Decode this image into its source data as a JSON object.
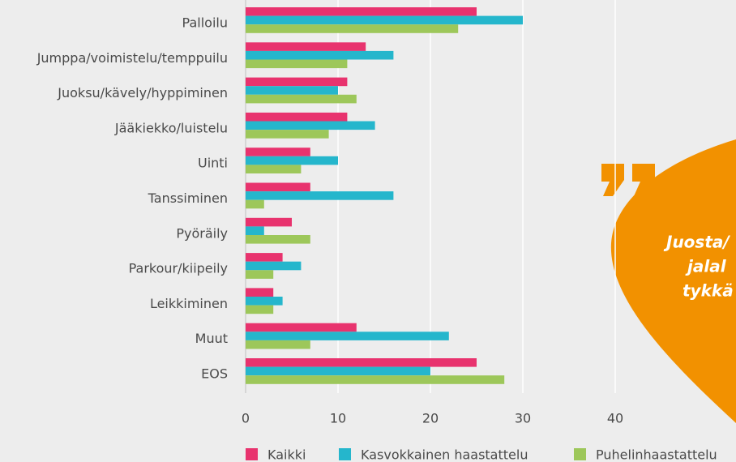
{
  "chart_data": {
    "type": "hbar",
    "categories": [
      "Palloilu",
      "Jumppa/voimistelu/temppuilu",
      "Juoksu/kävely/hyppiminen",
      "Jääkiekko/luistelu",
      "Uinti",
      "Tanssiminen",
      "Pyöräily",
      "Parkour/kiipeily",
      "Leikkiminen",
      "Muut",
      "EOS"
    ],
    "series": [
      {
        "name": "Kaikki",
        "color": "#e8336e",
        "values": [
          25,
          13,
          11,
          11,
          7,
          7,
          5,
          4,
          3,
          12,
          25
        ]
      },
      {
        "name": "Kasvokkainen haastattelu",
        "color": "#25b6cc",
        "values": [
          30,
          16,
          10,
          14,
          10,
          16,
          2,
          6,
          4,
          22,
          20
        ]
      },
      {
        "name": "Puhelinhaastattelu",
        "color": "#9dc75a",
        "values": [
          23,
          11,
          12,
          9,
          6,
          2,
          7,
          3,
          3,
          7,
          28
        ]
      }
    ],
    "xlim": [
      0,
      40
    ],
    "xticks": [
      0,
      10,
      20,
      30,
      40
    ],
    "grid": true,
    "legend": "bottom"
  },
  "quote": {
    "lines": [
      "Juosta/",
      "jalal",
      "tykkä"
    ]
  }
}
